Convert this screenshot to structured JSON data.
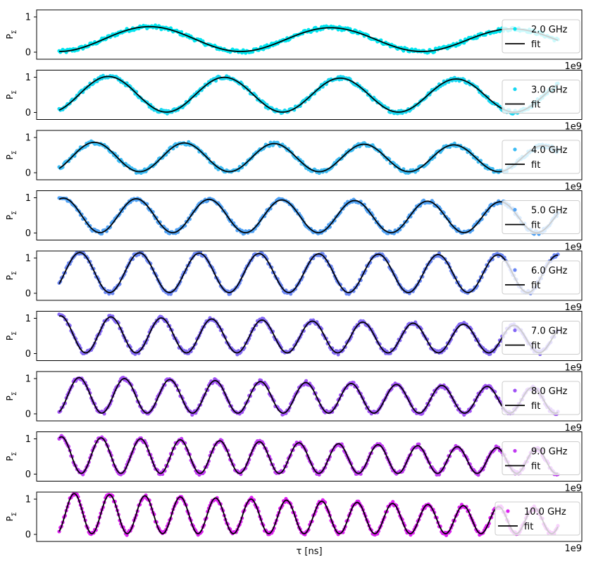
{
  "chart_data": {
    "type": "line",
    "xlabel": "τ [ns]",
    "x_offset_label": "1e9",
    "ylabel": "P",
    "ylabel_subscript": "Σ",
    "ylim": [
      -0.2,
      1.2
    ],
    "yticks": [
      0,
      1
    ],
    "fit_label": "fit",
    "fit_color": "#000000",
    "panels": [
      {
        "label": "2.0 GHz",
        "color": "#00e5f0",
        "amplitude": 0.72,
        "baseline": 0.02,
        "cycles": 2.75,
        "phase": -1.57,
        "decay": 0.12
      },
      {
        "label": "3.0 GHz",
        "color": "#18d8f2",
        "amplitude": 1.02,
        "baseline": 0.01,
        "cycles": 4.3,
        "phase": -1.1,
        "decay": 0.1
      },
      {
        "label": "4.0 GHz",
        "color": "#3cbcf4",
        "amplitude": 0.84,
        "baseline": 0.03,
        "cycles": 5.55,
        "phase": -0.9,
        "decay": 0.12
      },
      {
        "label": "5.0 GHz",
        "color": "#50a2f5",
        "amplitude": 0.98,
        "baseline": 0.01,
        "cycles": 6.85,
        "phase": 1.2,
        "decay": 0.12
      },
      {
        "label": "6.0 GHz",
        "color": "#6a86f5",
        "amplitude": 1.14,
        "baseline": 0.02,
        "cycles": 8.35,
        "phase": -0.6,
        "decay": 0.07
      },
      {
        "label": "7.0 GHz",
        "color": "#8468f5",
        "amplitude": 1.05,
        "baseline": 0.02,
        "cycles": 9.9,
        "phase": 1.4,
        "decay": 0.28
      },
      {
        "label": "8.0 GHz",
        "color": "#a050f5",
        "amplitude": 1.02,
        "baseline": 0.02,
        "cycles": 11.0,
        "phase": -1.2,
        "decay": 0.3
      },
      {
        "label": "9.0 GHz",
        "color": "#c03af2",
        "amplitude": 1.04,
        "baseline": 0.02,
        "cycles": 12.6,
        "phase": 1.2,
        "decay": 0.34
      },
      {
        "label": "10.0 GHz",
        "color": "#dc1ef0",
        "amplitude": 1.15,
        "baseline": 0.02,
        "cycles": 14.1,
        "phase": -1.1,
        "decay": 0.38
      }
    ]
  }
}
